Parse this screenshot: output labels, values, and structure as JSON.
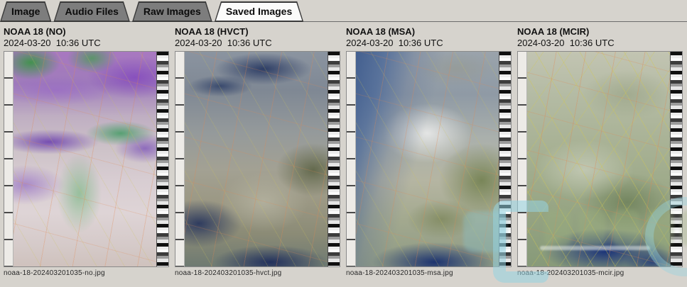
{
  "window": {
    "app_context": "satellite image viewer",
    "content_background": "#d6d3cd"
  },
  "tabs": [
    {
      "label": "Image",
      "active": false
    },
    {
      "label": "Audio Files",
      "active": false
    },
    {
      "label": "Raw Images",
      "active": false
    },
    {
      "label": "Saved Images",
      "active": true
    }
  ],
  "panels": [
    {
      "title": "NOAA 18 (NO)",
      "timestamp": "2024-03-20  10:36 UTC",
      "filename": "noaa-18-202403201035-no.jpg",
      "enhancement": "NO"
    },
    {
      "title": "NOAA 18 (HVCT)",
      "timestamp": "2024-03-20  10:36 UTC",
      "filename": "noaa-18-202403201035-hvct.jpg",
      "enhancement": "HVCT"
    },
    {
      "title": "NOAA 18 (MSA)",
      "timestamp": "2024-03-20  10:36 UTC",
      "filename": "noaa-18-202403201035-msa.jpg",
      "enhancement": "MSA"
    },
    {
      "title": "NOAA 18 (MCIR)",
      "timestamp": "2024-03-20  10:36 UTC",
      "filename": "noaa-18-202403201035-mcir.jpg",
      "enhancement": "MCIR"
    }
  ],
  "colors": {
    "tab_inactive": "#7d7d7d",
    "tab_active": "#fbfbfa",
    "tab_border": "#3a3a3a",
    "content_bg": "#d6d3cd",
    "watermark_accent": "#96d4e2"
  }
}
